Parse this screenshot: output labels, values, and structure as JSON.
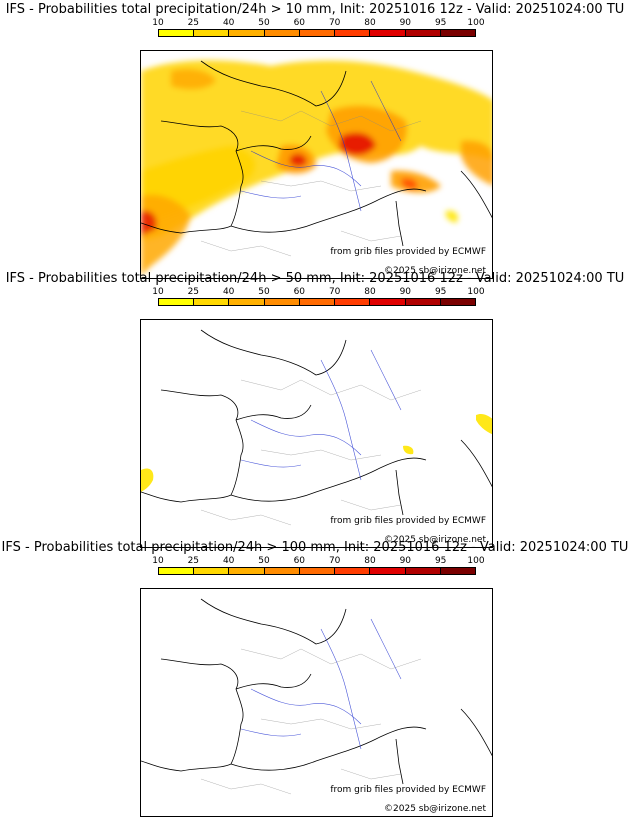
{
  "colorbar": {
    "ticks": [
      "10",
      "25",
      "40",
      "50",
      "60",
      "70",
      "80",
      "90",
      "95",
      "100"
    ],
    "colors": [
      "#ffff00",
      "#ffd800",
      "#ffb000",
      "#ff8c00",
      "#ff6a00",
      "#ff3c00",
      "#e00000",
      "#b00000",
      "#7a0000"
    ]
  },
  "panels": [
    {
      "title": "IFS - Probabilities total precipitation/24h > 10 mm, Init: 20251016 12z - Valid: 20251024:00 TU",
      "threshold_mm": 10,
      "source_credit": "from grib files provided by ECMWF",
      "copyright": "©2025 sb@irizone.net"
    },
    {
      "title": "IFS - Probabilities total precipitation/24h > 50 mm, Init: 20251016 12z - Valid: 20251024:00 TU",
      "threshold_mm": 50,
      "source_credit": "from grib files provided by ECMWF",
      "copyright": "©2025 sb@irizone.net"
    },
    {
      "title": "IFS - Probabilities total precipitation/24h > 100 mm, Init: 20251016 12z - Valid: 20251024:00 TU",
      "threshold_mm": 100,
      "source_credit": "from grib files provided by ECMWF",
      "copyright": "©2025 sb@irizone.net"
    }
  ]
}
